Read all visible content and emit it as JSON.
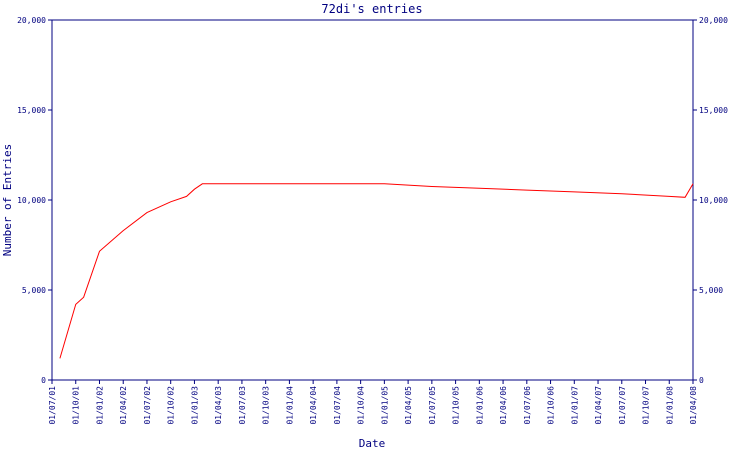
{
  "chart_data": {
    "type": "line",
    "title": "72di's entries",
    "x_label": "Date",
    "y_label": "Number of Entries",
    "x": [
      "01/08/01",
      "01/10/01",
      "01/11/01",
      "01/01/02",
      "01/04/02",
      "01/07/02",
      "01/10/02",
      "01/12/02",
      "01/01/03",
      "01/02/03",
      "01/01/05",
      "01/07/05",
      "01/01/06",
      "01/07/06",
      "01/01/07",
      "01/07/07",
      "01/01/08",
      "01/03/08",
      "01/04/08"
    ],
    "series": [
      {
        "color": "#ff0000",
        "values": [
          1200,
          4200,
          4600,
          7150,
          8300,
          9300,
          9900,
          10200,
          10600,
          10900,
          10900,
          10750,
          10650,
          10550,
          10450,
          10350,
          10200,
          10150,
          10900
        ]
      }
    ],
    "xlim": [
      "01/07/01",
      "01/04/08"
    ],
    "xticks": [
      "01/07/01",
      "01/10/01",
      "01/01/02",
      "01/04/02",
      "01/07/02",
      "01/10/02",
      "01/01/03",
      "01/04/03",
      "01/07/03",
      "01/10/03",
      "01/01/04",
      "01/04/04",
      "01/07/04",
      "01/10/04",
      "01/01/05",
      "01/04/05",
      "01/07/05",
      "01/10/05",
      "01/01/06",
      "01/04/06",
      "01/07/06",
      "01/10/06",
      "01/01/07",
      "01/04/07",
      "01/07/07",
      "01/10/07",
      "01/01/08",
      "01/04/08"
    ],
    "ylim": [
      0,
      20000
    ],
    "yticks": [
      0,
      {
        "value": 5000,
        "label": "5,000"
      },
      {
        "value": 10000,
        "label": "10,000"
      },
      {
        "value": 15000,
        "label": "15,000"
      },
      {
        "value": 20000,
        "label": "20,000"
      }
    ],
    "axis_color": "#000080",
    "grid": false
  }
}
